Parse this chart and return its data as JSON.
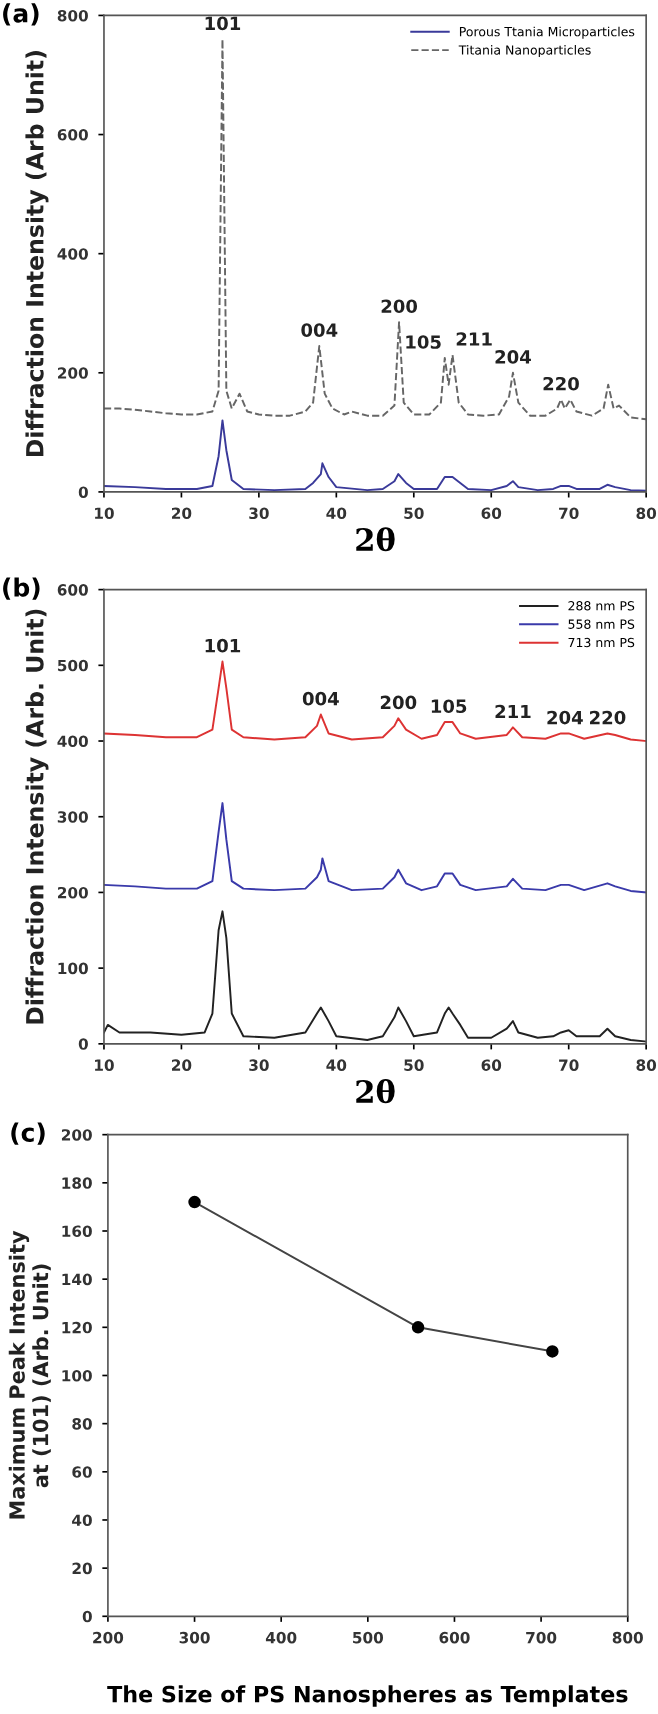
{
  "chart_data": [
    {
      "type": "line",
      "title": "(a)",
      "xlabel": "2θ",
      "ylabel": "Diffraction Intensity (Arb Unit)",
      "xlim": [
        10,
        80
      ],
      "ylim": [
        0,
        800
      ],
      "xticks": [
        10,
        20,
        30,
        40,
        50,
        60,
        70,
        80
      ],
      "yticks": [
        0,
        200,
        400,
        600,
        800
      ],
      "legend": "top right",
      "marker": "none",
      "series": [
        {
          "name": "Porous Ttania Microparticles",
          "color": "#3a3a9a",
          "line_style": "solid",
          "x": [
            10,
            14,
            18,
            22,
            24,
            24.8,
            25.3,
            25.8,
            26.5,
            28,
            32,
            36,
            37,
            38,
            38.2,
            39,
            40,
            44,
            46,
            47.5,
            48,
            49,
            50,
            53,
            54,
            55,
            56,
            57,
            60,
            62,
            62.8,
            63.5,
            66,
            68,
            69,
            70,
            71,
            74,
            75,
            76,
            78,
            80
          ],
          "values": [
            10,
            8,
            5,
            5,
            10,
            60,
            120,
            70,
            20,
            5,
            3,
            5,
            15,
            30,
            48,
            25,
            8,
            3,
            5,
            18,
            30,
            15,
            5,
            5,
            25,
            25,
            15,
            5,
            3,
            10,
            18,
            8,
            3,
            5,
            10,
            10,
            5,
            5,
            12,
            8,
            3,
            2
          ]
        },
        {
          "name": "Titania Nanoparticles",
          "color": "#666666",
          "line_style": "dashed",
          "x": [
            10,
            12,
            14,
            16,
            18,
            20,
            22,
            24,
            24.8,
            25.3,
            25.8,
            26.5,
            27.5,
            28.5,
            30,
            32,
            34,
            36,
            37,
            37.8,
            38.5,
            39.5,
            41,
            42,
            44,
            46,
            47.5,
            48.1,
            48.7,
            50,
            52,
            53.5,
            54,
            54.5,
            55,
            55.8,
            57,
            59,
            61,
            62.3,
            62.8,
            63.5,
            65,
            67,
            68.5,
            69,
            69.5,
            70.2,
            71,
            73,
            74.5,
            75.1,
            75.8,
            76.5,
            78,
            80
          ],
          "values": [
            140,
            140,
            138,
            135,
            132,
            130,
            130,
            135,
            170,
            760,
            170,
            140,
            165,
            135,
            130,
            128,
            128,
            135,
            150,
            245,
            165,
            140,
            130,
            135,
            128,
            128,
            145,
            285,
            150,
            130,
            130,
            150,
            225,
            180,
            230,
            150,
            130,
            128,
            130,
            160,
            200,
            150,
            128,
            128,
            140,
            155,
            140,
            155,
            135,
            128,
            140,
            180,
            140,
            145,
            125,
            122
          ]
        }
      ],
      "annotations": [
        {
          "text": "101",
          "x": 25.3,
          "y": 760
        },
        {
          "text": "004",
          "x": 37.8,
          "y": 245
        },
        {
          "text": "200",
          "x": 48.1,
          "y": 285
        },
        {
          "text": "105",
          "x": 54,
          "y": 225
        },
        {
          "text": "211",
          "x": 55,
          "y": 230
        },
        {
          "text": "204",
          "x": 62.8,
          "y": 200
        },
        {
          "text": "220",
          "x": 69,
          "y": 155
        }
      ]
    },
    {
      "type": "line",
      "title": "(b)",
      "xlabel": "2θ",
      "ylabel": "Diffraction Intensity (Arb. Unit)",
      "xlim": [
        10,
        80
      ],
      "ylim": [
        0,
        600
      ],
      "xticks": [
        10,
        20,
        30,
        40,
        50,
        60,
        70,
        80
      ],
      "yticks": [
        0,
        100,
        200,
        300,
        400,
        500,
        600
      ],
      "legend": "top right",
      "marker": "none",
      "series": [
        {
          "name": "288 nm PS",
          "color": "#222222",
          "line_style": "solid",
          "x": [
            10,
            10.5,
            12,
            16,
            20,
            23,
            24,
            24.8,
            25.3,
            25.8,
            26.5,
            28,
            32,
            36,
            37.5,
            38,
            39,
            40,
            44,
            46,
            47.5,
            48,
            49,
            50,
            53,
            54,
            54.5,
            55,
            56,
            57,
            60,
            62,
            62.8,
            63.5,
            66,
            68,
            69,
            70,
            71,
            74,
            75,
            76,
            78,
            80
          ],
          "values": [
            15,
            25,
            15,
            15,
            12,
            15,
            40,
            150,
            175,
            140,
            40,
            10,
            8,
            15,
            40,
            48,
            30,
            10,
            5,
            10,
            35,
            48,
            30,
            10,
            15,
            40,
            48,
            40,
            25,
            8,
            8,
            20,
            30,
            15,
            8,
            10,
            15,
            18,
            10,
            10,
            20,
            10,
            5,
            3
          ]
        },
        {
          "name": "558 nm PS",
          "color": "#3a3aaa",
          "line_style": "solid",
          "x": [
            10,
            14,
            18,
            22,
            24,
            24.8,
            25.3,
            25.8,
            26.5,
            28,
            32,
            36,
            37.5,
            38,
            38.2,
            39,
            42,
            46,
            47.5,
            48,
            49,
            51,
            53,
            54,
            55,
            56,
            58,
            62,
            62.8,
            64,
            67,
            69,
            70,
            72,
            75,
            76,
            78,
            80
          ],
          "values": [
            210,
            208,
            205,
            205,
            215,
            280,
            318,
            270,
            215,
            205,
            203,
            205,
            220,
            230,
            245,
            215,
            203,
            205,
            220,
            230,
            212,
            203,
            208,
            225,
            225,
            210,
            203,
            208,
            218,
            205,
            203,
            210,
            210,
            203,
            212,
            208,
            202,
            200
          ]
        },
        {
          "name": "713 nm PS",
          "color": "#dd3333",
          "line_style": "solid",
          "x": [
            10,
            14,
            18,
            22,
            24,
            24.8,
            25.3,
            25.8,
            26.5,
            28,
            32,
            36,
            37.5,
            38,
            39,
            42,
            46,
            47.5,
            48,
            49,
            51,
            53,
            54,
            55,
            56,
            58,
            62,
            62.8,
            64,
            67,
            69,
            70,
            72,
            75,
            76,
            78,
            80
          ],
          "values": [
            410,
            408,
            405,
            405,
            415,
            470,
            505,
            470,
            415,
            405,
            402,
            405,
            420,
            435,
            410,
            402,
            405,
            420,
            430,
            415,
            403,
            408,
            425,
            425,
            410,
            403,
            408,
            418,
            405,
            403,
            410,
            410,
            403,
            410,
            408,
            402,
            400
          ]
        }
      ],
      "annotations": [
        {
          "text": "101",
          "x": 25.3,
          "y": 505
        },
        {
          "text": "004",
          "x": 38,
          "y": 435
        },
        {
          "text": "200",
          "x": 48,
          "y": 430
        },
        {
          "text": "105",
          "x": 54.5,
          "y": 425
        },
        {
          "text": "211",
          "x": 62.8,
          "y": 418
        },
        {
          "text": "204",
          "x": 69.5,
          "y": 410
        },
        {
          "text": "220",
          "x": 75,
          "y": 410
        }
      ]
    },
    {
      "type": "line",
      "title": "(c)",
      "xlabel": "The Size of PS Nanospheres as Templates",
      "ylabel": "Maximum Peak Intensity\nat (101) (Arb. Unit)",
      "xlim": [
        200,
        800
      ],
      "ylim": [
        0,
        200
      ],
      "xticks": [
        200,
        300,
        400,
        500,
        600,
        700,
        800
      ],
      "yticks": [
        0,
        20,
        40,
        60,
        80,
        100,
        120,
        140,
        160,
        180,
        200
      ],
      "legend": false,
      "marker": "circle",
      "series": [
        {
          "color": "#444444",
          "line_style": "solid",
          "x": [
            300,
            558,
            713
          ],
          "values": [
            172,
            120,
            110
          ]
        }
      ]
    }
  ]
}
